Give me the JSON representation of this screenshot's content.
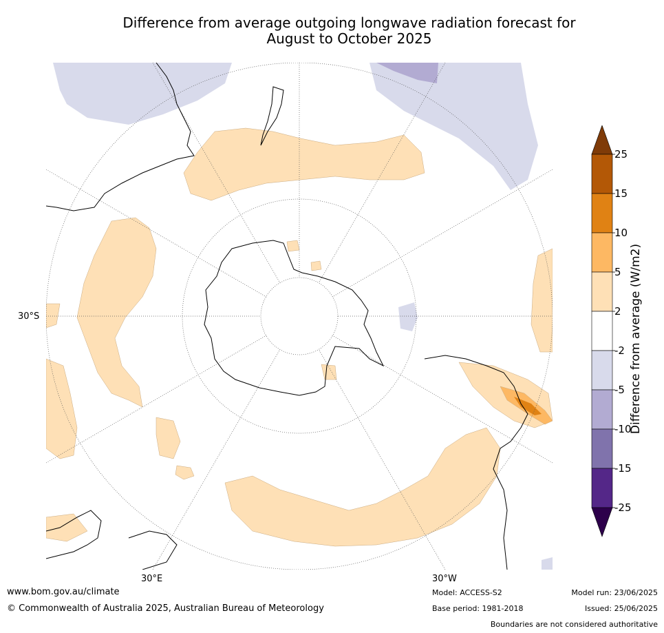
{
  "title_line1": "Difference from average outgoing longwave radiation forecast for",
  "title_line2": "August to October 2025",
  "map": {
    "projection": "south polar stereographic",
    "lat_label": "30°S",
    "lon_labels": [
      "30°E",
      "30°W"
    ]
  },
  "colorbar": {
    "label": "Difference from average (W/m2)",
    "ticks": [
      "25",
      "15",
      "10",
      "5",
      "2",
      "-2",
      "-5",
      "-10",
      "-15",
      "-25"
    ],
    "colors": [
      "#7f3b08",
      "#b35806",
      "#e08214",
      "#fdb863",
      "#fee0b6",
      "#ffffff",
      "#d8daeb",
      "#b2abd2",
      "#8073ac",
      "#542788",
      "#2d004b"
    ]
  },
  "footer": {
    "url": "www.bom.gov.au/climate",
    "copyright": "© Commonwealth of Australia 2025, Australian Bureau of Meteorology",
    "model": "Model: ACCESS-S2",
    "base_period": "Base period: 1981-2018",
    "model_run": "Model run: 23/06/2025",
    "issued": "Issued: 25/06/2025",
    "disclaimer": "Boundaries are not considered authoritative"
  }
}
